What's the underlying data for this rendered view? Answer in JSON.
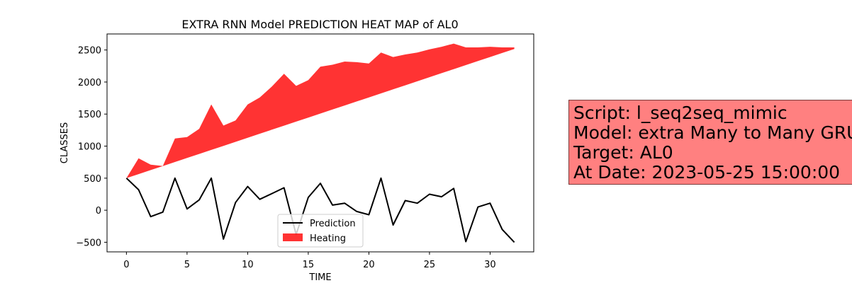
{
  "chart_data": {
    "type": "line",
    "title": "EXTRA RNN Model PREDICTION HEAT MAP of AL0",
    "xlabel": "TIME",
    "ylabel": "CLASSES",
    "xlim": [
      -1.6,
      33.6
    ],
    "ylim": [
      -650,
      2750
    ],
    "xticks": [
      0,
      5,
      10,
      15,
      20,
      25,
      30
    ],
    "yticks": [
      -500,
      0,
      500,
      1000,
      1500,
      2000,
      2500
    ],
    "x": [
      0,
      1,
      2,
      3,
      4,
      5,
      6,
      7,
      8,
      9,
      10,
      11,
      12,
      13,
      14,
      15,
      16,
      17,
      18,
      19,
      20,
      21,
      22,
      23,
      24,
      25,
      26,
      27,
      28,
      29,
      30,
      31,
      32
    ],
    "series": [
      {
        "name": "Prediction",
        "type": "line",
        "color": "#000000",
        "values": [
          500,
          320,
          -100,
          -30,
          500,
          20,
          160,
          500,
          -450,
          120,
          370,
          170,
          260,
          350,
          -380,
          200,
          420,
          80,
          110,
          -20,
          -70,
          500,
          -230,
          150,
          110,
          250,
          210,
          340,
          -490,
          50,
          110,
          -300,
          -500
        ]
      },
      {
        "name": "Heating",
        "type": "area",
        "color": "#ff0000",
        "upper": [
          500,
          810,
          710,
          690,
          1120,
          1140,
          1270,
          1650,
          1320,
          1400,
          1650,
          1760,
          1930,
          2130,
          1940,
          2030,
          2240,
          2270,
          2320,
          2310,
          2290,
          2460,
          2390,
          2430,
          2460,
          2510,
          2550,
          2600,
          2540,
          2540,
          2550,
          2540,
          2540
        ],
        "lower": [
          500,
          563,
          626,
          689,
          752,
          815,
          878,
          941,
          1004,
          1067,
          1130,
          1193,
          1256,
          1319,
          1382,
          1445,
          1508,
          1571,
          1634,
          1697,
          1760,
          1823,
          1886,
          1949,
          2012,
          2075,
          2138,
          2201,
          2264,
          2327,
          2390,
          2453,
          2516
        ]
      }
    ],
    "legend": {
      "position": "lower center",
      "entries": [
        "Prediction",
        "Heating"
      ]
    },
    "grid": false
  },
  "info_box": {
    "lines": [
      "Script: l_seq2seq_mimic",
      "Model: extra Many to Many GRU",
      "Target: AL0",
      "At Date: 2023-05-25 15:00:00"
    ],
    "background": "#ff8080"
  }
}
